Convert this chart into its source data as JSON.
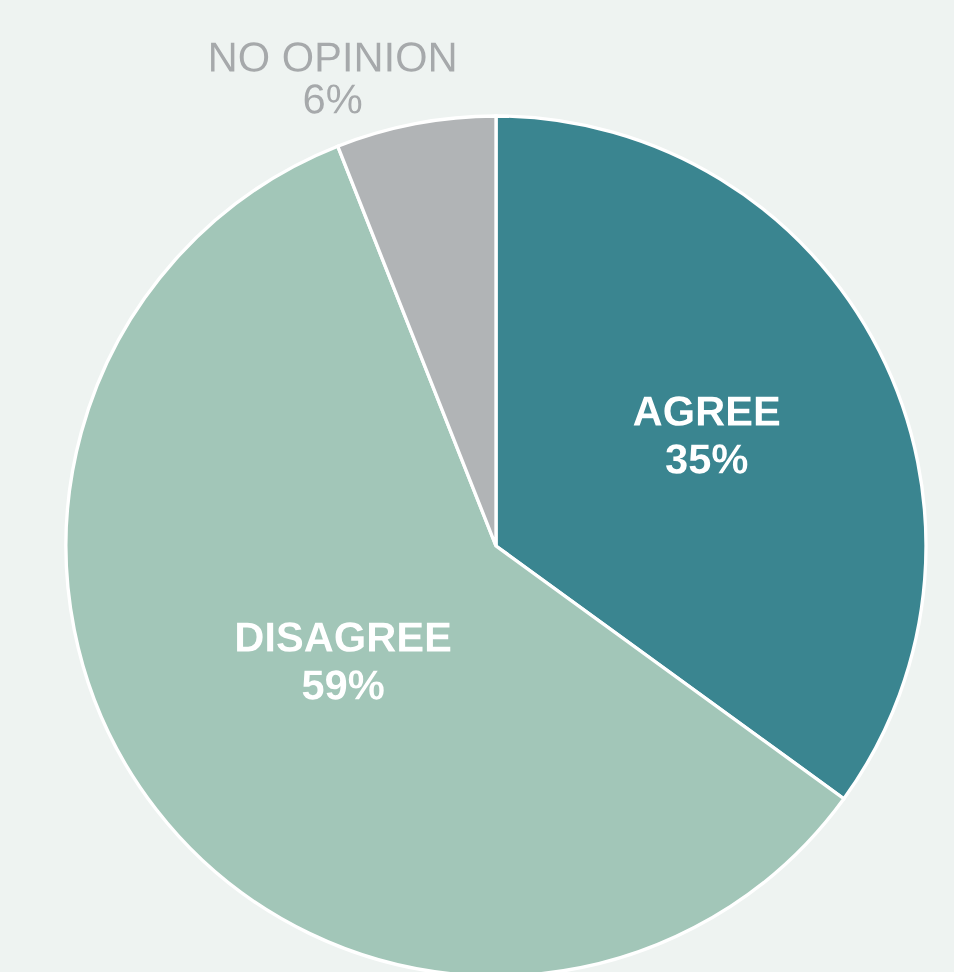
{
  "chart_data": {
    "type": "pie",
    "categories": [
      "AGREE",
      "DISAGREE",
      "NO OPINION"
    ],
    "values": [
      35,
      59,
      6
    ],
    "value_labels": [
      "35%",
      "59%",
      "6%"
    ],
    "colors": [
      "#3a8590",
      "#a2c6b8",
      "#b1b4b6"
    ]
  }
}
